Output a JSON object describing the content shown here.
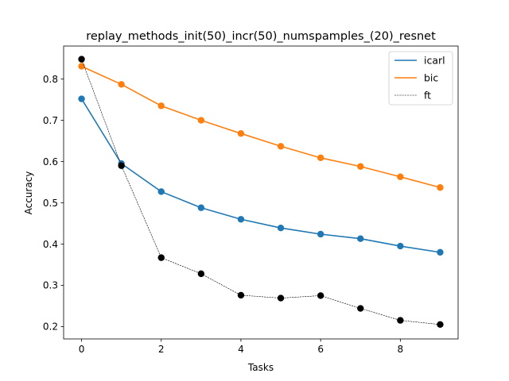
{
  "chart_data": {
    "type": "line",
    "title": "replay_methods_init(50)_incr(50)_numspamples_(20)_resnet",
    "xlabel": "Tasks",
    "ylabel": "Accuracy",
    "x": [
      0,
      1,
      2,
      3,
      4,
      5,
      6,
      7,
      8,
      9
    ],
    "xlim": [
      -0.45,
      9.45
    ],
    "ylim": [
      0.17,
      0.88
    ],
    "xticks": [
      0,
      2,
      4,
      6,
      8
    ],
    "yticks": [
      0.2,
      0.3,
      0.4,
      0.5,
      0.6,
      0.7,
      0.8
    ],
    "ytick_labels": [
      "0.2",
      "0.3",
      "0.4",
      "0.5",
      "0.6",
      "0.7",
      "0.8"
    ],
    "xtick_labels": [
      "0",
      "2",
      "4",
      "6",
      "8"
    ],
    "grid": false,
    "legend_position": "top-right",
    "series": [
      {
        "name": "icarl",
        "color": "#1f77b4",
        "style": "solid",
        "values": [
          0.752,
          0.595,
          0.527,
          0.488,
          0.46,
          0.439,
          0.424,
          0.413,
          0.395,
          0.38
        ]
      },
      {
        "name": "bic",
        "color": "#ff7f0e",
        "style": "solid",
        "values": [
          0.831,
          0.787,
          0.735,
          0.7,
          0.668,
          0.637,
          0.609,
          0.588,
          0.563,
          0.537
        ]
      },
      {
        "name": "ft",
        "color": "#000000",
        "style": "dashed",
        "values": [
          0.848,
          0.59,
          0.367,
          0.328,
          0.276,
          0.269,
          0.275,
          0.244,
          0.215,
          0.205
        ]
      }
    ]
  }
}
